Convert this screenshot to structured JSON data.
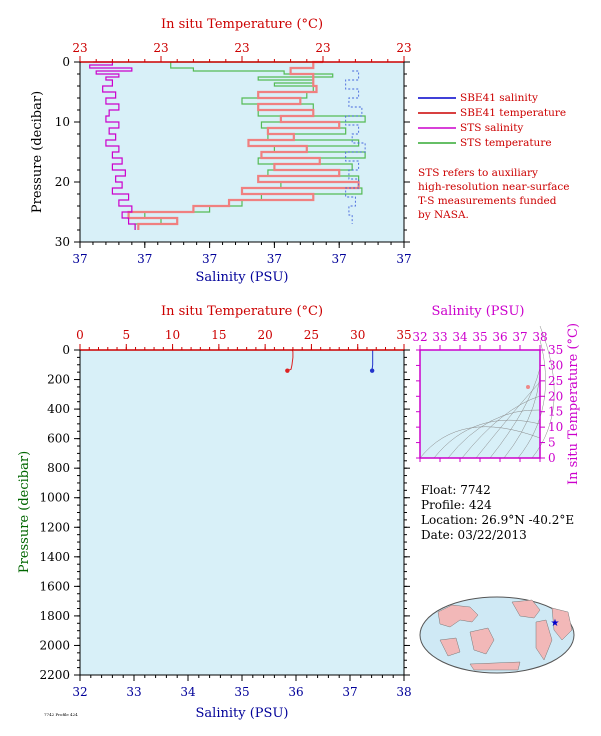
{
  "colors": {
    "temp_axis": "#cc0000",
    "sal_axis": "#000099",
    "pres_axis": "#006600",
    "inset_axis": "#cc00cc",
    "plot_bg": "#d8f0f8",
    "sbe41_salinity": "#0000cc",
    "sbe41_temperature": "#cc0000",
    "sts_salinity": "#cc00cc",
    "sts_temperature": "#33aa33",
    "note": "#cc0000"
  },
  "legend": {
    "items": [
      {
        "label": "SBE41 salinity",
        "color": "#0000cc"
      },
      {
        "label": "SBE41 temperature",
        "color": "#cc0000"
      },
      {
        "label": "STS salinity",
        "color": "#cc00cc"
      },
      {
        "label": "STS temperature",
        "color": "#33aa33"
      }
    ],
    "note": [
      "STS refers to auxiliary",
      "high-resolution near-surface",
      "T-S measurements funded",
      "by NASA."
    ]
  },
  "info": {
    "float": "Float:  7742",
    "profile": "Profile:  424",
    "location": "Location:  26.9°N  -40.2°E",
    "date": "Date:  03/22/2013"
  },
  "footer": "7742 Profile 424",
  "chart_data": [
    {
      "type": "line",
      "name": "near-surface profile",
      "top_axis_label": "In situ Temperature (°C)",
      "top_tick_labels": [
        "23",
        "23",
        "23",
        "23",
        "23"
      ],
      "xlabel": "Salinity (PSU)",
      "x_tick_labels": [
        "37",
        "37",
        "37",
        "37",
        "37",
        "37"
      ],
      "ylabel": "Pressure (decibar)",
      "y_ticks": [
        0,
        10,
        20,
        30
      ],
      "ylim": [
        30,
        0
      ],
      "series": [
        {
          "name": "STS temperature",
          "pressure": [
            0,
            1,
            1.5,
            2,
            2.5,
            3,
            3.5,
            4,
            5,
            6,
            7,
            8,
            9,
            10,
            11,
            12,
            13,
            14,
            15,
            16,
            17,
            18,
            19,
            20,
            21,
            22,
            23,
            24,
            25,
            26,
            27,
            28
          ],
          "value_frac": [
            0.75,
            0.28,
            0.35,
            0.63,
            0.78,
            0.55,
            0.72,
            0.6,
            0.72,
            0.7,
            0.5,
            0.72,
            0.55,
            0.88,
            0.56,
            0.82,
            0.58,
            0.86,
            0.6,
            0.88,
            0.55,
            0.84,
            0.58,
            0.86,
            0.62,
            0.87,
            0.56,
            0.5,
            0.4,
            0.2,
            0.25,
            0.17
          ]
        },
        {
          "name": "SBE41 temperature",
          "pressure": [
            0,
            1,
            2,
            3,
            4,
            5,
            6,
            7,
            8,
            9,
            10,
            11,
            12,
            13,
            14,
            15,
            16,
            17,
            18,
            19,
            20,
            21,
            22,
            23,
            24,
            25,
            26,
            27,
            28
          ],
          "value_frac": [
            0.75,
            0.72,
            0.65,
            0.72,
            0.72,
            0.73,
            0.55,
            0.68,
            0.55,
            0.72,
            0.62,
            0.8,
            0.58,
            0.66,
            0.52,
            0.7,
            0.56,
            0.74,
            0.6,
            0.8,
            0.55,
            0.86,
            0.5,
            0.72,
            0.46,
            0.35,
            0.15,
            0.3,
            0.18
          ]
        },
        {
          "name": "STS salinity",
          "pressure": [
            0,
            0.5,
            1,
            1.5,
            2,
            2.5,
            3,
            4,
            5,
            6,
            7,
            8,
            9,
            10,
            11,
            12,
            13,
            14,
            15,
            16,
            17,
            18,
            19,
            20,
            21,
            22,
            23,
            24,
            25,
            26,
            27,
            28
          ],
          "value_frac": [
            0.04,
            0.1,
            0.03,
            0.16,
            0.05,
            0.12,
            0.08,
            0.1,
            0.07,
            0.11,
            0.08,
            0.12,
            0.09,
            0.08,
            0.12,
            0.09,
            0.11,
            0.08,
            0.12,
            0.1,
            0.13,
            0.1,
            0.14,
            0.11,
            0.13,
            0.1,
            0.15,
            0.12,
            0.16,
            0.13,
            0.15,
            0.17
          ]
        },
        {
          "name": "SBE41 salinity",
          "pressure": [
            1.5,
            3,
            4.5,
            6,
            7.5,
            9,
            10.5,
            12,
            13.5,
            15,
            16.5,
            18,
            19.5,
            21,
            22.5,
            24,
            25.5,
            27
          ],
          "value_frac": [
            0.84,
            0.86,
            0.82,
            0.86,
            0.83,
            0.87,
            0.82,
            0.86,
            0.84,
            0.88,
            0.82,
            0.86,
            0.83,
            0.86,
            0.82,
            0.85,
            0.83,
            0.84
          ]
        }
      ]
    },
    {
      "type": "line",
      "name": "full profile",
      "top_axis_label": "In situ Temperature (°C)",
      "top_ticks": [
        0,
        5,
        10,
        15,
        20,
        25,
        30,
        35
      ],
      "xlabel": "Salinity (PSU)",
      "x_ticks": [
        32,
        33,
        34,
        35,
        36,
        37,
        38
      ],
      "xlim": [
        32,
        38
      ],
      "temp_lim": [
        0,
        35
      ],
      "ylabel": "Pressure (decibar)",
      "y_ticks": [
        0,
        200,
        400,
        600,
        800,
        1000,
        1200,
        1400,
        1600,
        1800,
        2000,
        2200
      ],
      "ylim": [
        2200,
        0
      ],
      "series": [
        {
          "name": "SBE41 temperature",
          "pressure": [
            0,
            10,
            50,
            100,
            130,
            140
          ],
          "temperature": [
            22.9,
            23.0,
            23.0,
            22.9,
            22.8,
            22.4
          ]
        },
        {
          "name": "SBE41 salinity",
          "pressure": [
            0,
            10,
            50,
            100,
            130,
            140
          ],
          "salinity": [
            37.42,
            37.42,
            37.42,
            37.42,
            37.41,
            37.41
          ]
        }
      ]
    },
    {
      "type": "scatter",
      "name": "T-S diagram",
      "xlabel": "Salinity (PSU)",
      "x_ticks": [
        32,
        33,
        34,
        35,
        36,
        37,
        38
      ],
      "xlim": [
        32,
        38
      ],
      "ylabel": "In situ Temperature (°C)",
      "y_ticks": [
        0,
        5,
        10,
        15,
        20,
        25,
        30,
        35
      ],
      "ylim": [
        0,
        35
      ],
      "points": [
        {
          "salinity": 37.4,
          "temperature": 23.0
        }
      ]
    }
  ]
}
